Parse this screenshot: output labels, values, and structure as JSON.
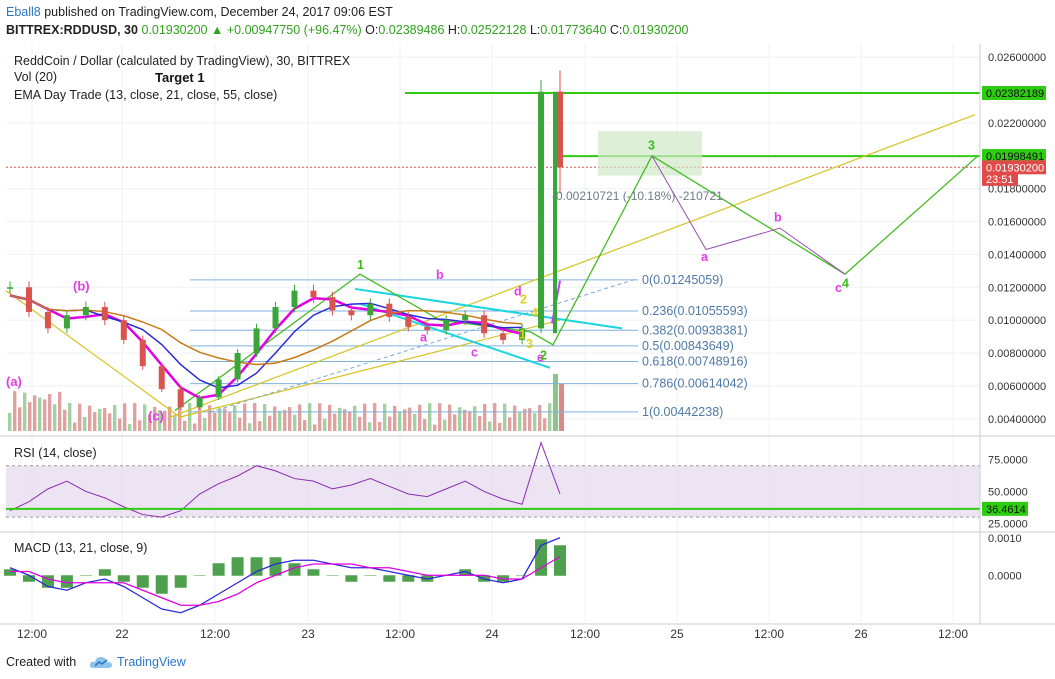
{
  "header": {
    "author": "Eball8",
    "published": " published on TradingView.com, December 24, 2017 09:06 EST",
    "symbol": "BITTREX:RDDUSD, 30",
    "last": "0.01930200",
    "change": "+0.00947750 (+96.47%)",
    "o_label": "O:",
    "o": "0.02389486",
    "h_label": "H:",
    "h": "0.02522128",
    "l_label": "L:",
    "l": "0.01773640",
    "c_label": "C:",
    "c": "0.01930200"
  },
  "legend": {
    "title": "ReddCoin / Dollar (calculated by TradingView), 30, BITTREX",
    "vol": "Vol (20)",
    "ema": "EMA Day Trade (13, close, 21, close, 55, close)",
    "rsi": "RSI (14, close)",
    "macd": "MACD (13, 21, close, 9)"
  },
  "colors": {
    "up_candle": "#3aa63a",
    "down_candle": "#d9534f",
    "ema13": "#e000e0",
    "ema21": "#2a2ad8",
    "ema55": "#c87a14",
    "green_line": "#2ecc11",
    "yellow_line": "#d6c21e",
    "cyan_line": "#18d5e0",
    "fib_line": "#7fb2df",
    "wave_label": "#e53ce5",
    "current_price_bg": "#e24a4a",
    "green_label_bg": "#2ecc11",
    "rsi_band": "#e6d8ee"
  },
  "chart_data": {
    "type": "line",
    "title": "ReddCoin / Dollar (calculated by TradingView), 30, BITTREX",
    "xlabel": "",
    "ylabel": "",
    "ylim": [
      0.0035,
      0.0265
    ],
    "x_ticks": [
      "12:00",
      "22",
      "12:00",
      "23",
      "12:00",
      "24",
      "12:00",
      "25",
      "12:00",
      "26",
      "12:00"
    ],
    "y_ticks": [
      "0.02600000",
      "0.02200000",
      "0.01800000",
      "0.01600000",
      "0.01400000",
      "0.01200000",
      "0.01000000",
      "0.00800000",
      "0.00600000",
      "0.00400000"
    ],
    "price_labels": [
      {
        "text": "0.02382189",
        "value": 0.02382189,
        "style": "green"
      },
      {
        "text": "0.01998491",
        "value": 0.01998491,
        "style": "green"
      },
      {
        "text": "0.01930200",
        "value": 0.019302,
        "style": "red"
      },
      {
        "text": "23:51",
        "value": 0.0186,
        "style": "red"
      }
    ],
    "series": [
      {
        "name": "RDDUSD",
        "x": [
          0,
          1,
          2,
          3,
          4,
          5,
          6,
          7,
          8,
          9,
          10,
          11,
          12,
          13,
          14,
          15,
          16,
          17,
          18,
          19,
          20,
          21,
          22,
          23,
          24,
          25,
          26,
          27,
          28,
          29
        ],
        "values": [
          0.012,
          0.0105,
          0.0095,
          0.0103,
          0.0108,
          0.01,
          0.0088,
          0.0072,
          0.0058,
          0.0047,
          0.0053,
          0.0064,
          0.008,
          0.0095,
          0.0108,
          0.0118,
          0.0114,
          0.0106,
          0.0103,
          0.011,
          0.0102,
          0.0096,
          0.0094,
          0.01,
          0.0103,
          0.0092,
          0.0088,
          0.0095,
          0.0239,
          0.0193
        ]
      }
    ],
    "fibonacci": [
      {
        "label": "0(0.01245059)",
        "value": 0.01245059
      },
      {
        "label": "0.236(0.01055593)",
        "value": 0.01055593
      },
      {
        "label": "0.382(0.00938381)",
        "value": 0.00938381
      },
      {
        "label": "0.5(0.00843649)",
        "value": 0.00843649
      },
      {
        "label": "0.618(0.00748916)",
        "value": 0.00748916
      },
      {
        "label": "0.786(0.00614042)",
        "value": 0.00614042
      },
      {
        "label": "1(0.00442238)",
        "value": 0.00442238
      }
    ],
    "measure_text": "-0.00210721 (-10.18%) -210721",
    "annotations": [
      {
        "text": "Target 1",
        "color": "#111"
      },
      {
        "text": "(b)",
        "color": "#e53ce5"
      },
      {
        "text": "(a)",
        "color": "#e53ce5"
      },
      {
        "text": "(c)",
        "color": "#e53ce5"
      },
      {
        "text": "1",
        "color": "#3bbf18"
      },
      {
        "text": "b",
        "color": "#e53ce5"
      },
      {
        "text": "a",
        "color": "#e53ce5"
      },
      {
        "text": "c",
        "color": "#e53ce5"
      },
      {
        "text": "d",
        "color": "#e53ce5"
      },
      {
        "text": "2",
        "color": "#e0d018"
      },
      {
        "text": "4",
        "color": "#e0d018"
      },
      {
        "text": "1",
        "color": "#e0d018"
      },
      {
        "text": "3",
        "color": "#e0d018"
      },
      {
        "text": "e",
        "color": "#e53ce5"
      },
      {
        "text": "2",
        "color": "#3bbf18"
      },
      {
        "text": "3",
        "color": "#3bbf18"
      },
      {
        "text": "a",
        "color": "#e53ce5"
      },
      {
        "text": "b",
        "color": "#e53ce5"
      },
      {
        "text": "c",
        "color": "#e53ce5"
      },
      {
        "text": "4",
        "color": "#3bbf18"
      }
    ],
    "rsi": {
      "name": "RSI (14, close)",
      "ticks": [
        "75.0000",
        "50.0000",
        "25.0000"
      ],
      "current": "36.4614",
      "current_value": 36.4614,
      "ylim": [
        20,
        90
      ],
      "values": [
        35,
        42,
        52,
        58,
        50,
        45,
        38,
        32,
        30,
        35,
        48,
        56,
        62,
        70,
        66,
        60,
        58,
        52,
        55,
        60,
        54,
        48,
        46,
        52,
        58,
        50,
        44,
        40,
        88,
        48
      ]
    },
    "macd": {
      "name": "MACD (13, 21, close, 9)",
      "ticks": [
        "0.0010",
        "0.0000"
      ],
      "ylim": [
        -0.0013,
        0.0011
      ],
      "macd": [
        0.0002,
        0.0,
        -0.0003,
        -0.0004,
        -0.0002,
        -0.0001,
        -0.0003,
        -0.0006,
        -0.0009,
        -0.001,
        -0.0008,
        -0.0005,
        -0.0002,
        0.0001,
        0.0003,
        0.0004,
        0.0004,
        0.0003,
        0.0002,
        0.0002,
        0.0001,
        0.0,
        -0.0001,
        0.0,
        0.0001,
        -0.0001,
        -0.0002,
        -0.0001,
        0.0008,
        0.001
      ],
      "signal": [
        0.0001,
        0.0001,
        -0.0001,
        -0.0002,
        -0.0002,
        -0.0002,
        -0.0002,
        -0.0004,
        -0.0006,
        -0.0008,
        -0.0008,
        -0.0007,
        -0.0005,
        -0.0002,
        0.0,
        0.0002,
        0.0003,
        0.0003,
        0.0003,
        0.0002,
        0.0002,
        0.0001,
        0.0,
        0.0,
        0.0,
        0.0,
        -0.0001,
        -0.0001,
        0.0002,
        0.0005
      ]
    }
  },
  "footer": {
    "created": "Created with",
    "brand": "TradingView"
  }
}
